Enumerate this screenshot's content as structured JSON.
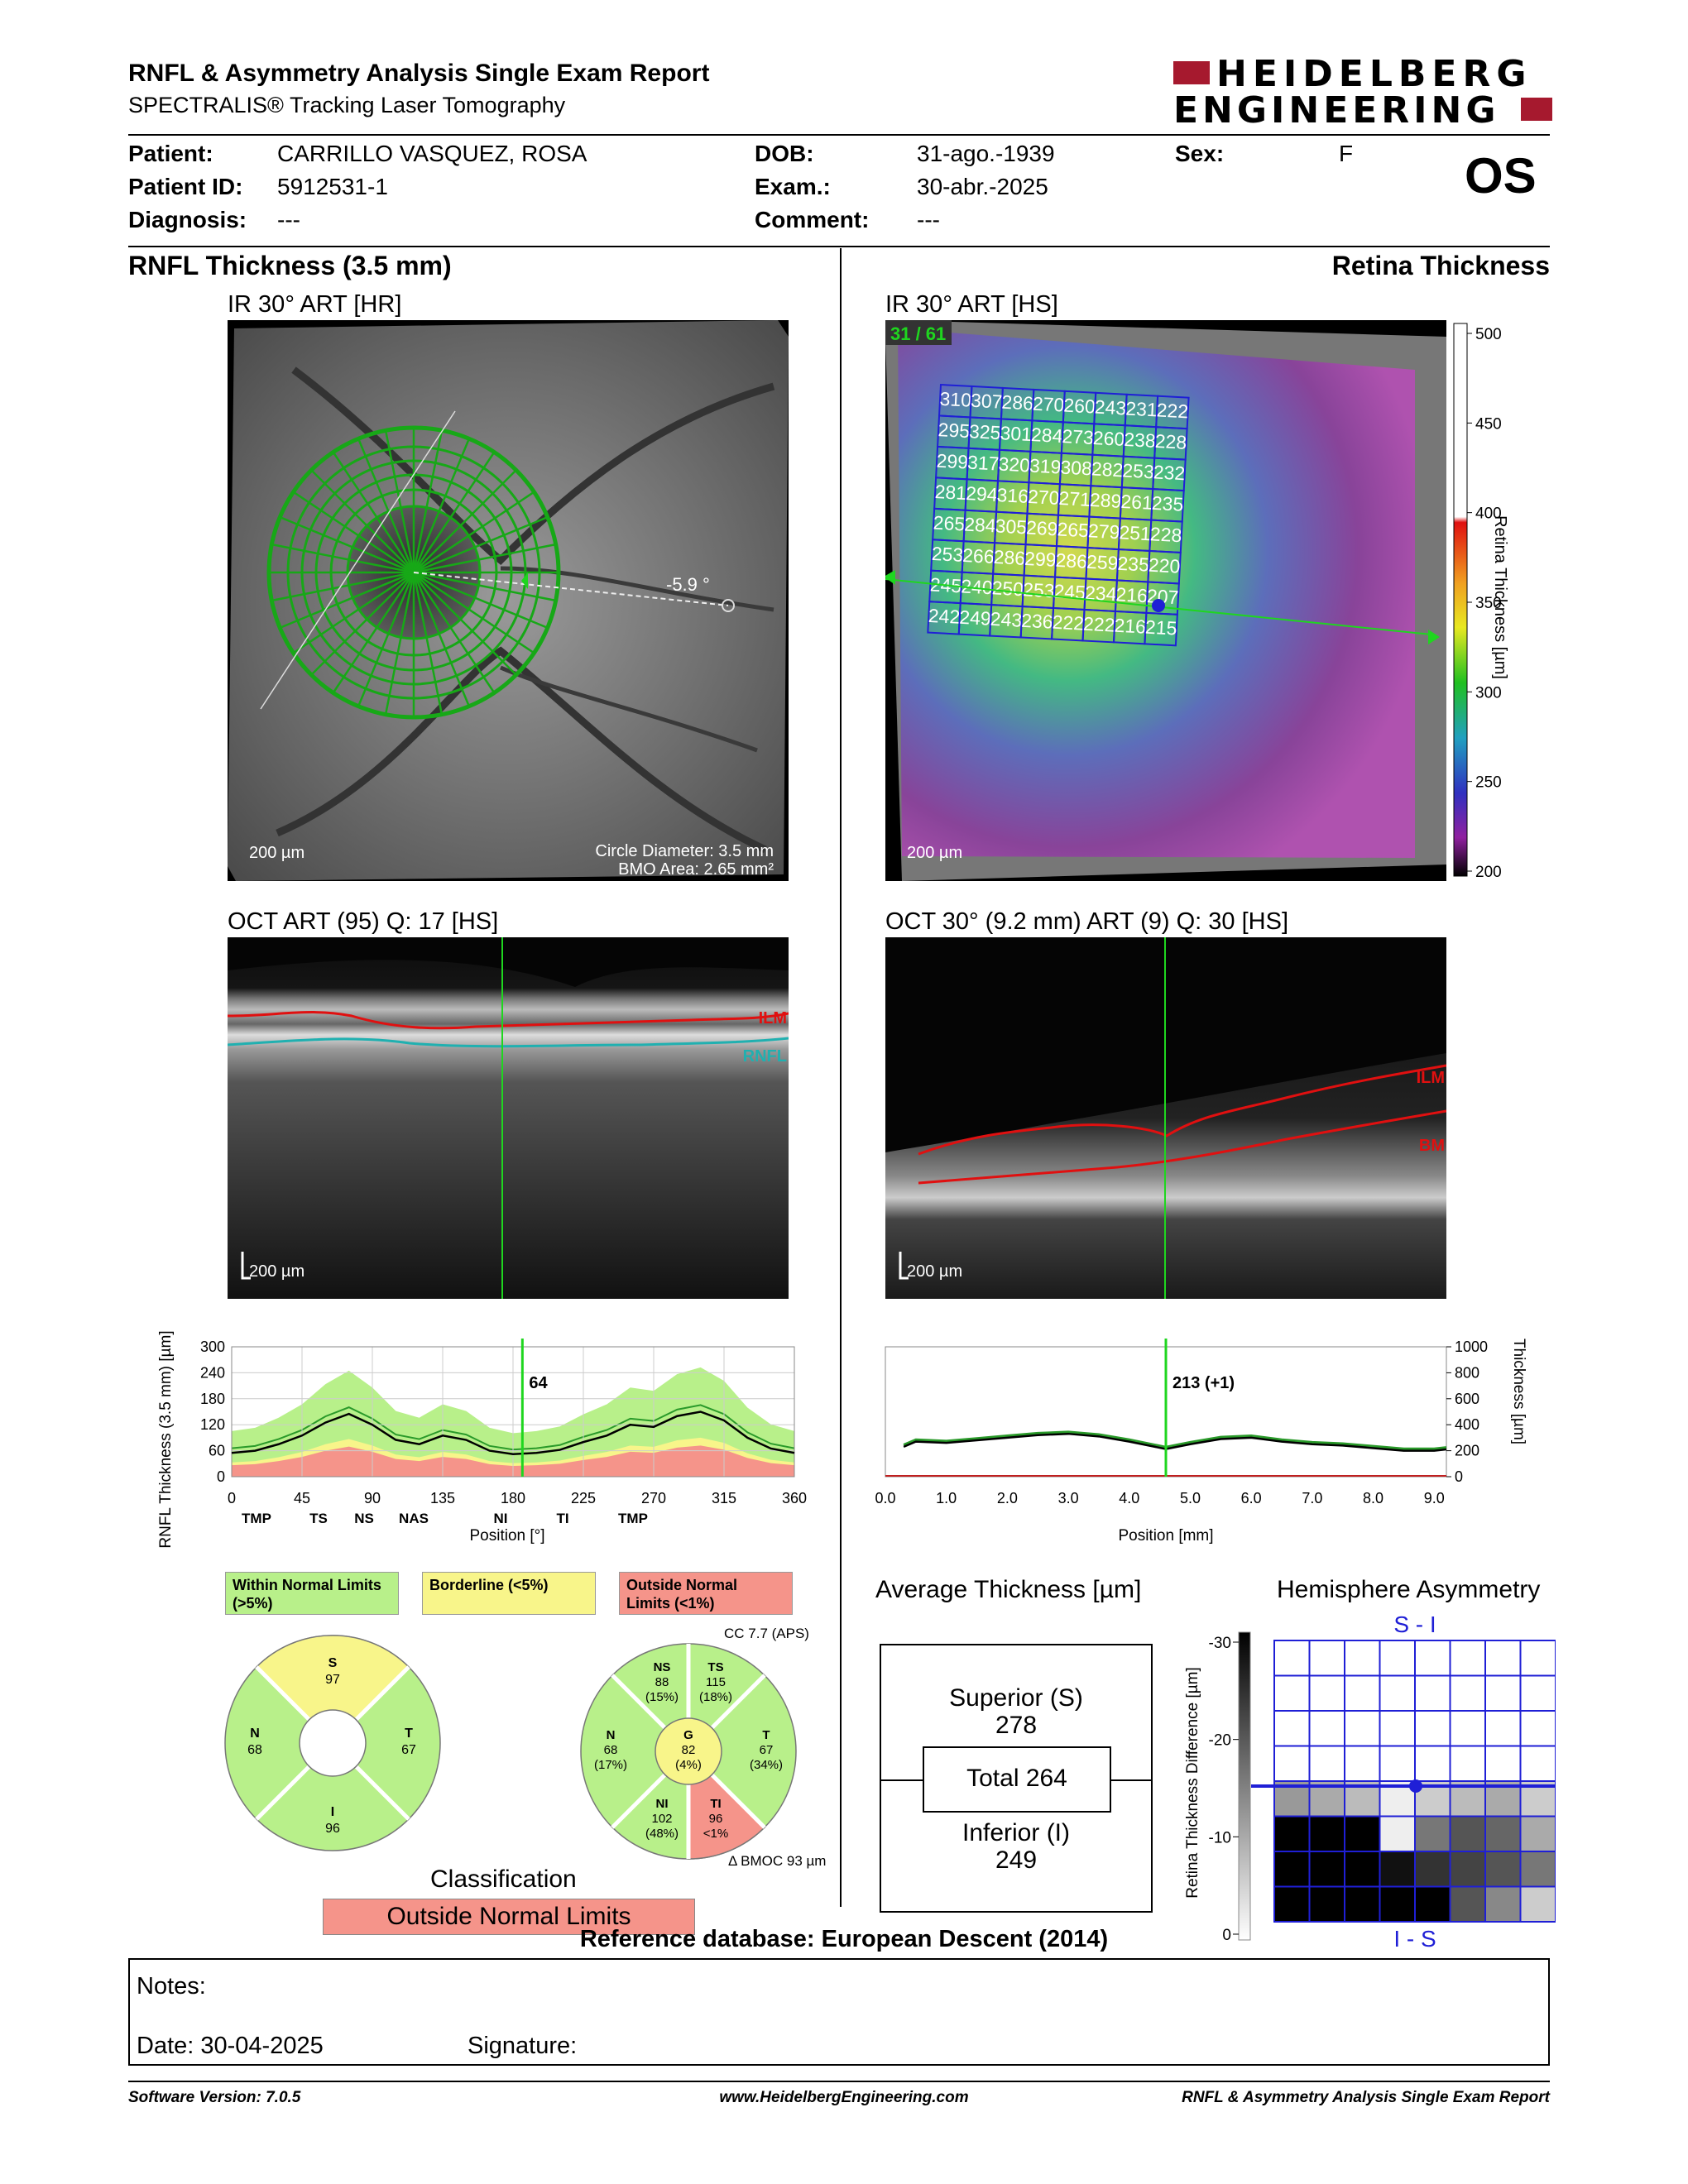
{
  "report": {
    "title": "RNFL & Asymmetry Analysis Single Exam Report",
    "subtitle": "SPECTRALIS® Tracking Laser Tomography",
    "logo_line1": "HEIDELBERG",
    "logo_line2": "ENGINEERING"
  },
  "patient": {
    "patient_label": "Patient:",
    "patient_value": "CARRILLO VASQUEZ, ROSA",
    "id_label": "Patient ID:",
    "id_value": "5912531-1",
    "diag_label": "Diagnosis:",
    "diag_value": "---",
    "dob_label": "DOB:",
    "dob_value": "31-ago.-1939",
    "exam_label": "Exam.:",
    "exam_value": "30-abr.-2025",
    "comment_label": "Comment:",
    "comment_value": "---",
    "sex_label": "Sex:",
    "sex_value": "F",
    "eye": "OS"
  },
  "sections": {
    "left_title": "RNFL Thickness (3.5 mm)",
    "right_title": "Retina Thickness"
  },
  "fundus_left": {
    "label": "IR 30° ART [HR]",
    "scale": "200 µm",
    "circle_diameter": "Circle Diameter: 3.5 mm",
    "bmo_area": "BMO Area: 2.65 mm²",
    "angle": "-5.9 °"
  },
  "fundus_right": {
    "label": "IR 30° ART [HS]",
    "scale": "200 µm",
    "frame": "31 / 61",
    "grid": [
      [
        310,
        307,
        286,
        270,
        260,
        243,
        231,
        222
      ],
      [
        295,
        325,
        301,
        284,
        273,
        260,
        238,
        228
      ],
      [
        299,
        317,
        320,
        319,
        308,
        282,
        253,
        232
      ],
      [
        281,
        294,
        316,
        270,
        271,
        289,
        261,
        235
      ],
      [
        265,
        284,
        305,
        269,
        265,
        279,
        251,
        228
      ],
      [
        253,
        266,
        286,
        299,
        286,
        259,
        235,
        220
      ],
      [
        245,
        240,
        250,
        253,
        245,
        234,
        216,
        207
      ],
      [
        242,
        249,
        243,
        236,
        222,
        222,
        216,
        215
      ]
    ],
    "colorbar": {
      "ticks": [
        "500",
        "450",
        "400",
        "350",
        "300",
        "250",
        "200"
      ],
      "label": "Retina Thickness [µm]"
    }
  },
  "oct_left": {
    "label": "OCT ART (95) Q: 17 [HS]",
    "ilm": "ILM",
    "rnfl": "RNFL",
    "scale": "200 µm"
  },
  "oct_right": {
    "label": "OCT 30° (9.2 mm) ART (9) Q: 30 [HS]",
    "ilm": "ILM",
    "bm": "BM",
    "scale": "200 µm"
  },
  "chart_data": [
    {
      "type": "line",
      "ylabel": "RNFL Thickness (3.5 mm) [µm]",
      "xlabel": "Position [°]",
      "x_ticks": [
        "0",
        "45",
        "90",
        "135",
        "180",
        "225",
        "270",
        "315",
        "360"
      ],
      "y_ticks": [
        "0",
        "60",
        "120",
        "180",
        "240",
        "300"
      ],
      "sector_labels": [
        "TMP",
        "TS",
        "NS",
        "NAS",
        "NI",
        "TI",
        "TMP"
      ],
      "ylim": [
        0,
        300
      ],
      "xlim": [
        0,
        360
      ],
      "marker_value": "64",
      "x": [
        0,
        15,
        30,
        45,
        60,
        75,
        90,
        105,
        120,
        135,
        150,
        165,
        180,
        195,
        210,
        225,
        240,
        255,
        270,
        285,
        300,
        315,
        330,
        345,
        360
      ],
      "series": [
        {
          "values": [
            55,
            60,
            75,
            95,
            125,
            145,
            120,
            85,
            75,
            95,
            85,
            60,
            52,
            55,
            62,
            80,
            95,
            120,
            115,
            140,
            150,
            130,
            90,
            65,
            55
          ]
        }
      ]
    },
    {
      "type": "line",
      "ylabel": "Thickness [µm]",
      "xlabel": "Position [mm]",
      "x_ticks": [
        "0.0",
        "1.0",
        "2.0",
        "3.0",
        "4.0",
        "5.0",
        "6.0",
        "7.0",
        "8.0",
        "9.0"
      ],
      "y_ticks": [
        "0",
        "200",
        "400",
        "600",
        "800",
        "1000"
      ],
      "xlim": [
        0,
        9.2
      ],
      "ylim": [
        0,
        1000
      ],
      "marker_value": "213 (+1)",
      "x": [
        0.3,
        0.5,
        1.0,
        1.5,
        2.0,
        2.5,
        3.0,
        3.5,
        4.0,
        4.6,
        5.0,
        5.5,
        6.0,
        6.5,
        7.0,
        7.5,
        8.0,
        8.5,
        9.0,
        9.2
      ],
      "series": [
        {
          "values": [
            230,
            270,
            260,
            280,
            300,
            320,
            330,
            310,
            270,
            213,
            250,
            290,
            300,
            270,
            250,
            240,
            220,
            200,
            200,
            210
          ]
        }
      ]
    }
  ],
  "legend": {
    "within": "Within Normal Limits (>5%)",
    "borderline": "Borderline (<5%)",
    "outside": "Outside Normal Limits (<1%)"
  },
  "pie_left": {
    "s": "S",
    "s_val": "97",
    "n": "N",
    "n_val": "68",
    "t": "T",
    "t_val": "67",
    "i": "I",
    "i_val": "96"
  },
  "pie_right": {
    "cc": "CC 7.7 (APS)",
    "ns": "NS",
    "ns_val": "88",
    "ns_pct": "(15%)",
    "ts": "TS",
    "ts_val": "115",
    "ts_pct": "(18%)",
    "n": "N",
    "n_val": "68",
    "n_pct": "(17%)",
    "g": "G",
    "g_val": "82",
    "g_pct": "(4%)",
    "t": "T",
    "t_val": "67",
    "t_pct": "(34%)",
    "ni": "NI",
    "ni_val": "102",
    "ni_pct": "(48%)",
    "ti": "TI",
    "ti_val": "96",
    "ti_pct": "<1%",
    "bmoc": "BMOC 93 µm"
  },
  "classification": {
    "title": "Classification",
    "value": "Outside Normal Limits"
  },
  "average": {
    "title": "Average Thickness [µm]",
    "superior_label": "Superior (S)",
    "superior_value": "278",
    "total": "Total 264",
    "inferior_label": "Inferior (I)",
    "inferior_value": "249"
  },
  "asymmetry": {
    "title": "Hemisphere Asymmetry",
    "top": "S - I",
    "bottom": "I - S",
    "axis_label": "Retina Thickness Difference [µm]",
    "ticks": [
      "-30",
      "-20",
      "-10",
      "0"
    ]
  },
  "reference": "Reference database: European Descent (2014)",
  "notes": {
    "notes_label": "Notes:",
    "date_label": "Date: 30-04-2025",
    "signature_label": "Signature:"
  },
  "footer": {
    "version": "Software Version: 7.0.5",
    "website": "www.HeidelbergEngineering.com",
    "report": "RNFL & Asymmetry Analysis Single Exam Report"
  },
  "colors": {
    "green": "#b8f08a",
    "yellow": "#f8f58a",
    "red": "#f5948a",
    "brand": "#a6192e",
    "grid_blue": "#1f1fd6"
  }
}
